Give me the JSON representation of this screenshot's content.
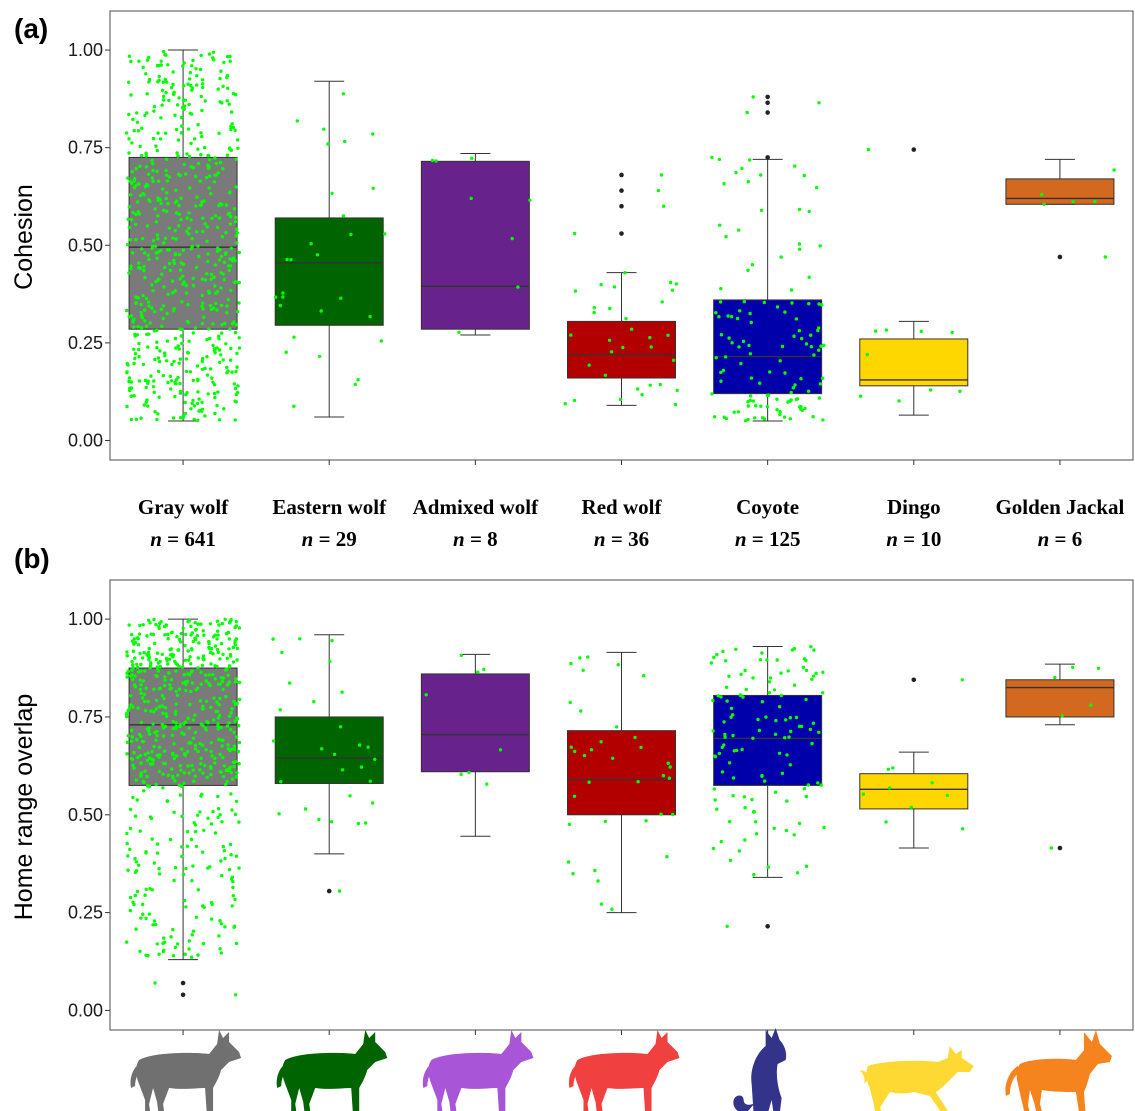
{
  "chart_data": [
    {
      "type": "box",
      "panel_label": "(a)",
      "ylabel": "Cohesion",
      "ylim": [
        -0.05,
        1.1
      ],
      "yticks": [
        "0.00",
        "0.25",
        "0.50",
        "0.75",
        "1.00"
      ],
      "ytick_values": [
        0,
        0.25,
        0.5,
        0.75,
        1.0
      ],
      "grid": false,
      "jitter_color": "#00ff00",
      "boxes": [
        {
          "name": "Gray wolf",
          "color": "#7a7a7a",
          "min": 0.05,
          "q1": 0.285,
          "median": 0.495,
          "q3": 0.725,
          "max": 1.0,
          "outliers": []
        },
        {
          "name": "Eastern wolf",
          "color": "#006400",
          "min": 0.06,
          "q1": 0.295,
          "median": 0.455,
          "q3": 0.57,
          "max": 0.92,
          "outliers": []
        },
        {
          "name": "Admixed wolf",
          "color": "#68228b",
          "min": 0.27,
          "q1": 0.285,
          "median": 0.395,
          "q3": 0.715,
          "max": 0.735,
          "outliers": []
        },
        {
          "name": "Red wolf",
          "color": "#b20000",
          "min": 0.09,
          "q1": 0.16,
          "median": 0.22,
          "q3": 0.305,
          "max": 0.43,
          "outliers": [
            0.53,
            0.6,
            0.64,
            0.68
          ]
        },
        {
          "name": "Coyote",
          "color": "#0000aa",
          "min": 0.05,
          "q1": 0.12,
          "median": 0.215,
          "q3": 0.36,
          "max": 0.72,
          "outliers": [
            0.725,
            0.84,
            0.865,
            0.88
          ]
        },
        {
          "name": "Dingo",
          "color": "#ffd700",
          "min": 0.065,
          "q1": 0.14,
          "median": 0.155,
          "q3": 0.26,
          "max": 0.305,
          "outliers": [
            0.745
          ]
        },
        {
          "name": "Golden Jackal",
          "color": "#d2691e",
          "min": 0.605,
          "q1": 0.605,
          "median": 0.62,
          "q3": 0.67,
          "max": 0.72,
          "outliers": [
            0.47
          ]
        }
      ]
    },
    {
      "type": "box",
      "panel_label": "(b)",
      "ylabel": "Home range overlap",
      "ylim": [
        -0.05,
        1.1
      ],
      "yticks": [
        "0.00",
        "0.25",
        "0.50",
        "0.75",
        "1.00"
      ],
      "ytick_values": [
        0,
        0.25,
        0.5,
        0.75,
        1.0
      ],
      "grid": false,
      "jitter_color": "#00ff00",
      "boxes": [
        {
          "name": "Gray wolf",
          "color": "#7a7a7a",
          "min": 0.13,
          "q1": 0.575,
          "median": 0.73,
          "q3": 0.875,
          "max": 1.0,
          "outliers": [
            0.04,
            0.07
          ]
        },
        {
          "name": "Eastern wolf",
          "color": "#006400",
          "min": 0.4,
          "q1": 0.58,
          "median": 0.645,
          "q3": 0.75,
          "max": 0.96,
          "outliers": [
            0.305
          ]
        },
        {
          "name": "Admixed wolf",
          "color": "#68228b",
          "min": 0.445,
          "q1": 0.61,
          "median": 0.705,
          "q3": 0.86,
          "max": 0.91,
          "outliers": []
        },
        {
          "name": "Red wolf",
          "color": "#b20000",
          "min": 0.25,
          "q1": 0.5,
          "median": 0.59,
          "q3": 0.715,
          "max": 0.915,
          "outliers": []
        },
        {
          "name": "Coyote",
          "color": "#0000aa",
          "min": 0.34,
          "q1": 0.575,
          "median": 0.695,
          "q3": 0.805,
          "max": 0.93,
          "outliers": [
            0.215
          ]
        },
        {
          "name": "Dingo",
          "color": "#ffd700",
          "min": 0.415,
          "q1": 0.515,
          "median": 0.565,
          "q3": 0.605,
          "max": 0.66,
          "outliers": [
            0.845
          ]
        },
        {
          "name": "Golden Jackal",
          "color": "#d2691e",
          "min": 0.73,
          "q1": 0.75,
          "median": 0.825,
          "q3": 0.845,
          "max": 0.885,
          "outliers": [
            0.415
          ]
        }
      ]
    }
  ],
  "groups": [
    {
      "name": "Gray wolf",
      "n_prefix": "n",
      "n_value": " = 641",
      "jitter_n": 641,
      "silhouette_color": "#707070",
      "silhouette_icon": "wolf-icon"
    },
    {
      "name": "Eastern wolf",
      "n_prefix": "n",
      "n_value": " = 29",
      "jitter_n": 29,
      "silhouette_color": "#006400",
      "silhouette_icon": "wolf-icon"
    },
    {
      "name": "Admixed wolf",
      "n_prefix": "n",
      "n_value": " = 8",
      "jitter_n": 8,
      "silhouette_color": "#a855d8",
      "silhouette_icon": "wolf-icon"
    },
    {
      "name": "Red wolf",
      "n_prefix": "n",
      "n_value": " = 36",
      "jitter_n": 36,
      "silhouette_color": "#f04040",
      "silhouette_icon": "wolf-icon"
    },
    {
      "name": "Coyote",
      "n_prefix": "n",
      "n_value": " = 125",
      "jitter_n": 125,
      "silhouette_color": "#33338a",
      "silhouette_icon": "howling-coyote-icon"
    },
    {
      "name": "Dingo",
      "n_prefix": "n",
      "n_value": " = 10",
      "jitter_n": 10,
      "silhouette_color": "#ffd933",
      "silhouette_icon": "dingo-icon"
    },
    {
      "name": "Golden Jackal",
      "n_prefix": "n",
      "n_value": " = 6",
      "jitter_n": 6,
      "silhouette_color": "#f5841f",
      "silhouette_icon": "jackal-icon"
    }
  ]
}
